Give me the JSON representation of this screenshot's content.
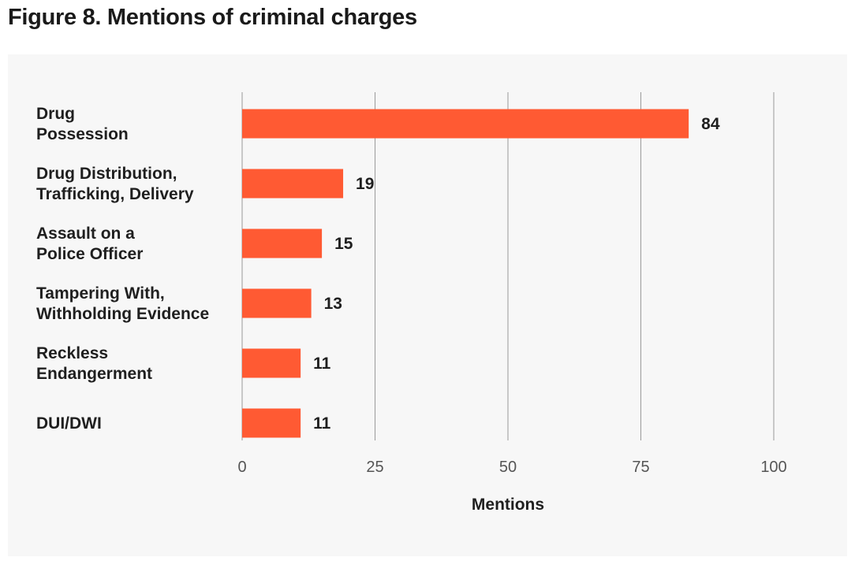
{
  "figure_title": "Figure 8. Mentions of criminal charges",
  "colors": {
    "bar": "#ff5a33",
    "panel_background": "#f7f7f7",
    "gridline": "#9a9a9a",
    "text": "#1f1f1f"
  },
  "chart_data": {
    "type": "bar",
    "orientation": "horizontal",
    "title": "Figure 8. Mentions of criminal charges",
    "xlabel": "Mentions",
    "ylabel": "",
    "categories": [
      [
        "Drug",
        "Possession"
      ],
      [
        "Drug Distribution,",
        "Trafficking, Delivery"
      ],
      [
        "Assault on a",
        "Police Officer"
      ],
      [
        "Tampering With,",
        "Withholding Evidence"
      ],
      [
        "Reckless",
        "Endangerment"
      ],
      [
        "DUI/DWI"
      ]
    ],
    "values": [
      84,
      19,
      15,
      13,
      11,
      11
    ],
    "xlim": [
      0,
      100
    ],
    "xticks": [
      0,
      25,
      50,
      75,
      100
    ],
    "grid": true,
    "data_labels": true
  }
}
